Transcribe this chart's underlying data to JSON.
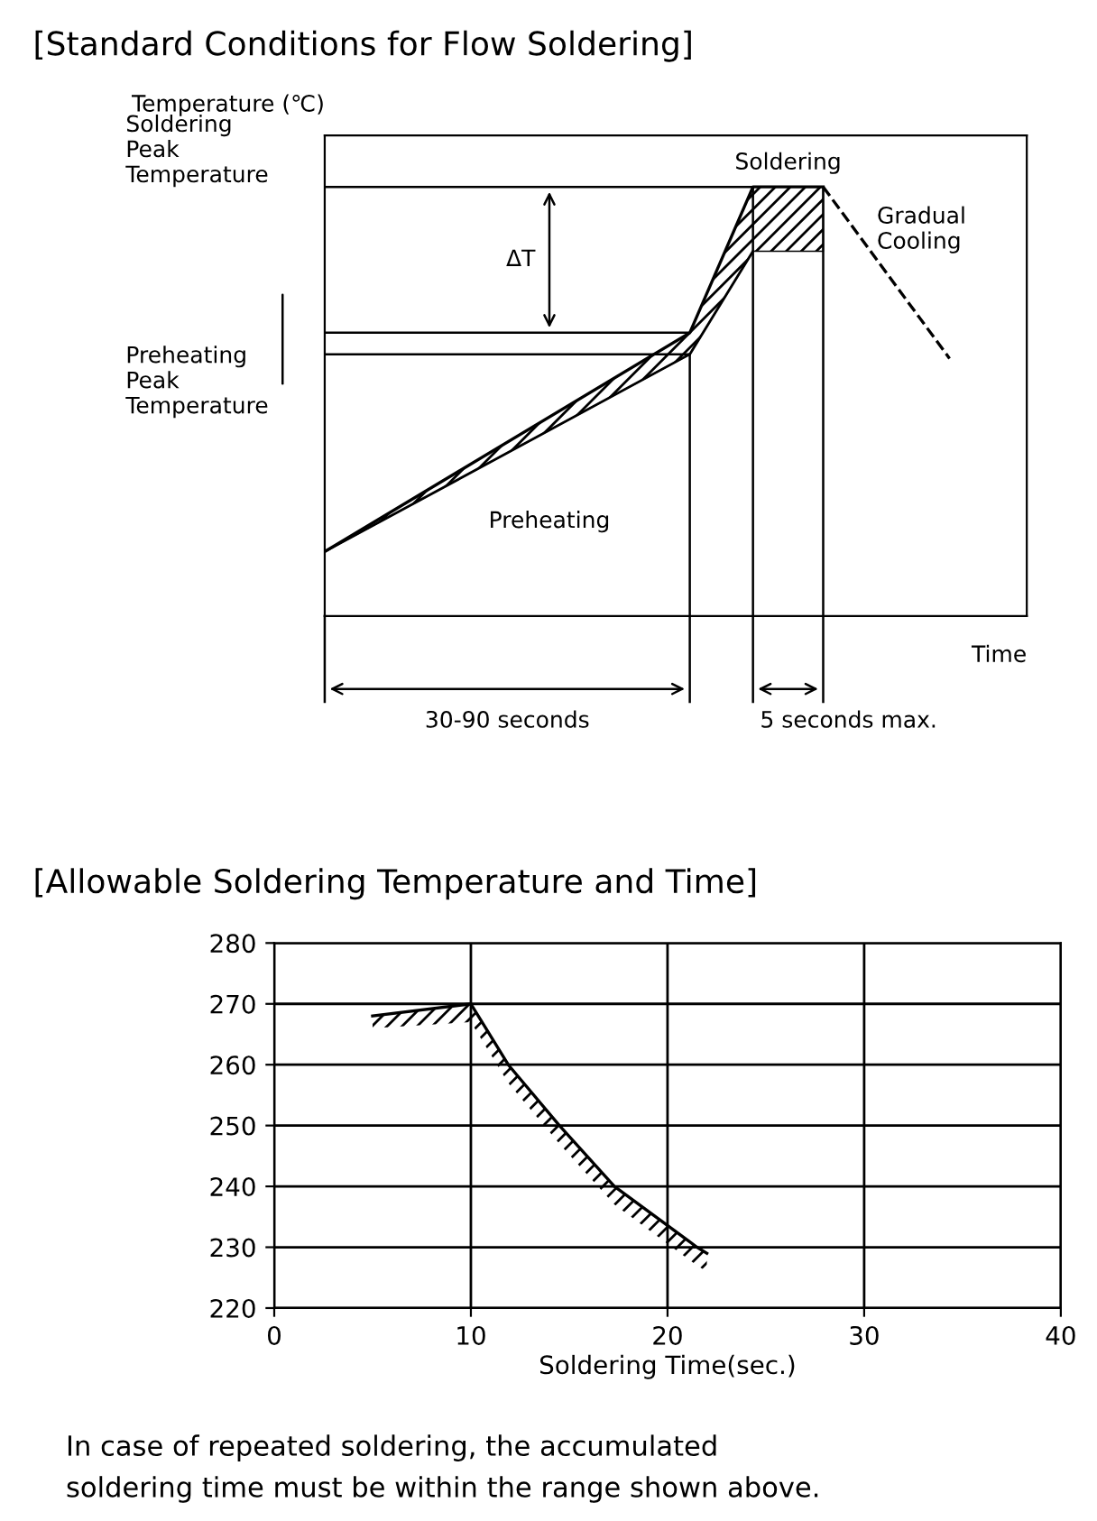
{
  "chart_data": [
    {
      "type": "other",
      "title": "[Standard Conditions for Flow Soldering]",
      "xlabel": "Time",
      "ylabel": "Temperature (℃)",
      "annotations": [
        "Soldering\nPeak\nTemperature",
        "Preheating\nPeak\nTemperature",
        "ΔT",
        "Preheating",
        "Soldering",
        "Gradual\nCooling",
        "30-90 seconds",
        "5 seconds max."
      ]
    },
    {
      "type": "line",
      "title": "[Allowable Soldering Temperature and Time]",
      "xlabel": "Soldering Time(sec.)",
      "xlim": [
        0,
        40
      ],
      "xticks": [
        0,
        10,
        20,
        30,
        40
      ],
      "ylim": [
        220,
        280
      ],
      "yticks": [
        220,
        230,
        240,
        250,
        260,
        270,
        280
      ],
      "grid": true,
      "series": [
        {
          "color": "#000000",
          "x": [
            5,
            10,
            11.9,
            14.5,
            17.3,
            21.5,
            22
          ],
          "values": [
            268,
            270,
            260,
            250,
            240,
            230,
            229
          ],
          "lower": [
            266,
            267,
            257,
            247,
            237,
            227,
            226
          ],
          "upper": [
            268,
            270,
            260,
            250,
            240,
            230,
            229
          ],
          "line_style": "solid"
        }
      ],
      "annotations": [
        "In case of repeated soldering, the accumulated\nsoldering time must be within the range shown above."
      ]
    }
  ]
}
